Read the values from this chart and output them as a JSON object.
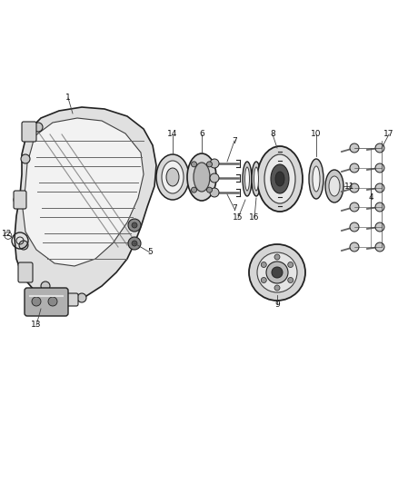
{
  "bg_color": "#ffffff",
  "fig_width": 4.38,
  "fig_height": 5.33,
  "dpi": 100,
  "lc": "#404040",
  "lc_dark": "#222222",
  "lc_mid": "#666666",
  "lc_light": "#aaaaaa",
  "fill_case": "#e8e8e8",
  "fill_dark": "#555555",
  "fill_mid": "#999999",
  "fill_light": "#cccccc",
  "text_color": "#111111",
  "font_size": 6.5
}
